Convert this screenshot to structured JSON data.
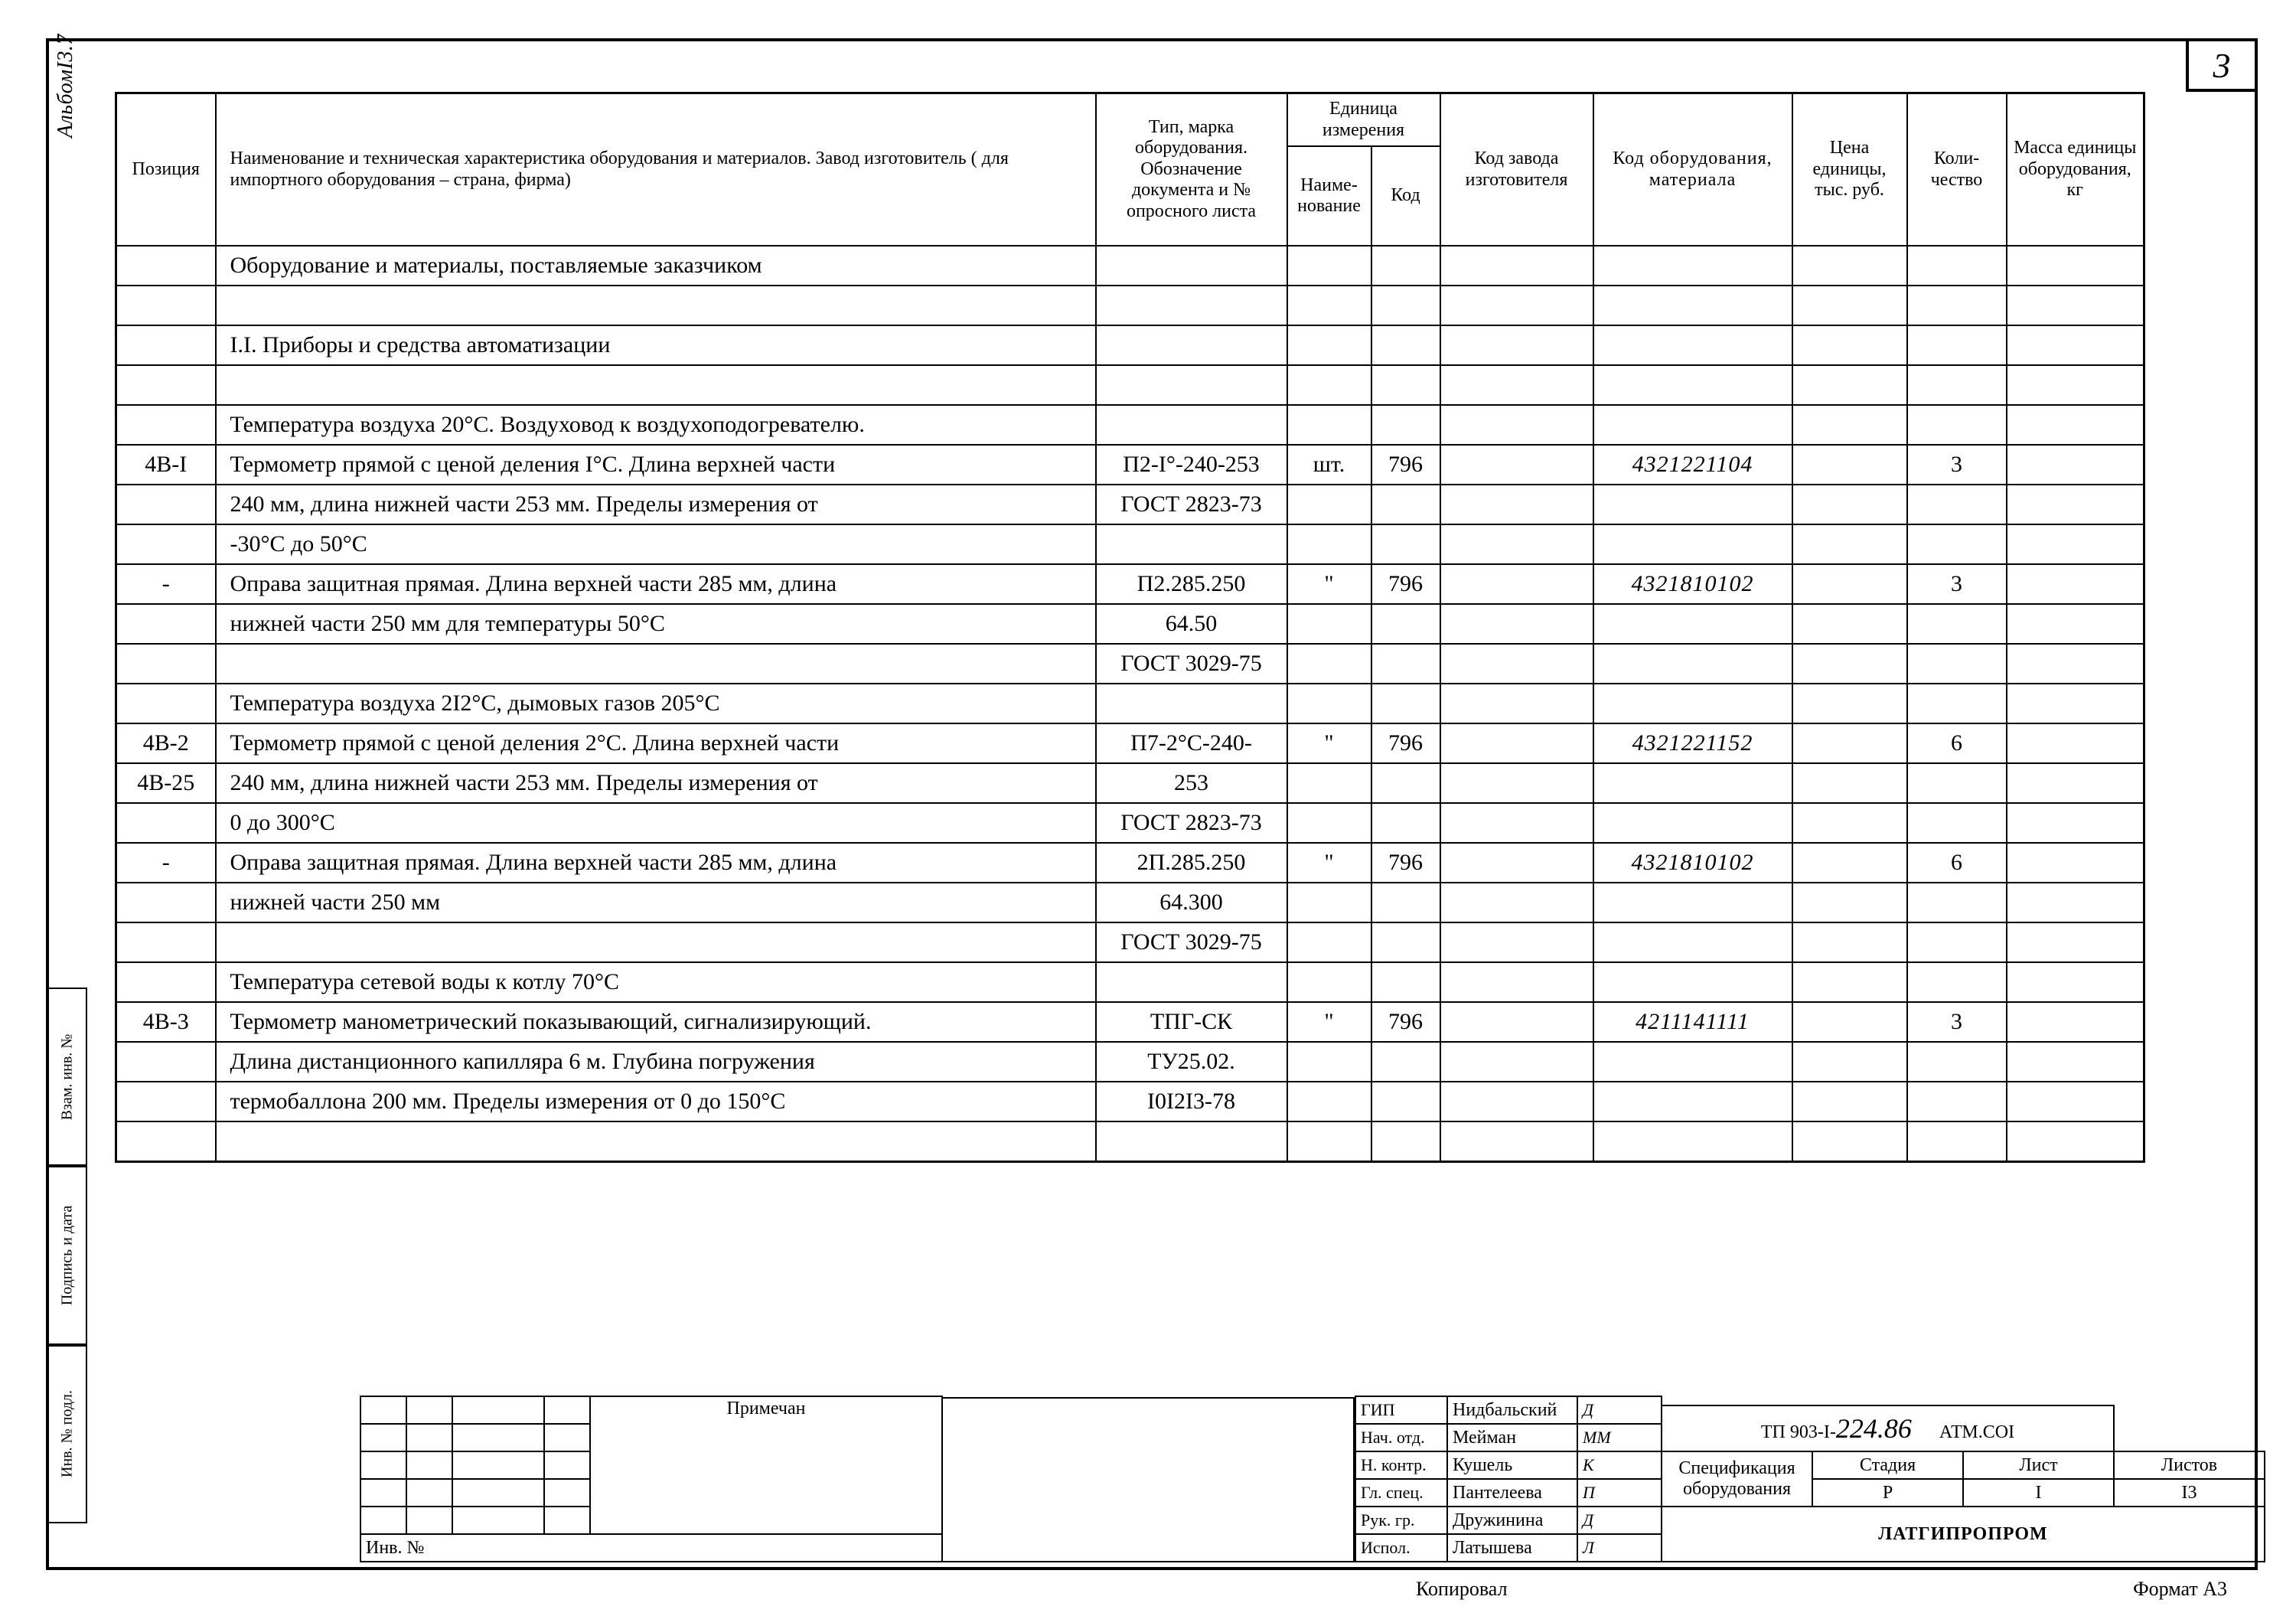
{
  "page_number": "3",
  "album_label": "АльбомI3.7",
  "sidebar": [
    "Взам. инв. №",
    "Подпись и дата",
    "Инв. № подл."
  ],
  "headers": {
    "pos": "Позиция",
    "name": "Наименование и техническая характеристика оборудования и материалов. Завод изготовитель ( для импортного оборудования – страна, фирма)",
    "type": "Тип, марка оборудования. Обозначение документа и № опросного листа",
    "unit_group": "Единица измерения",
    "unit_name": "Наиме-нование",
    "unit_code": "Код",
    "zavod": "Код завода изготовителя",
    "kodob": "Код оборудования, материала",
    "cena": "Цена единицы, тыс. руб.",
    "kol": "Коли-чество",
    "mass": "Масса единицы оборудо­вания, кг"
  },
  "rows": [
    {
      "pos": "",
      "name": "Оборудование и материалы, поставляемые заказчиком",
      "type": "",
      "un": "",
      "kod": "",
      "zav": "",
      "kodob": "",
      "cena": "",
      "kol": "",
      "mass": ""
    },
    {
      "pos": "",
      "name": "",
      "type": "",
      "un": "",
      "kod": "",
      "zav": "",
      "kodob": "",
      "cena": "",
      "kol": "",
      "mass": ""
    },
    {
      "pos": "",
      "name": "I.I. Приборы и средства автоматизации",
      "type": "",
      "un": "",
      "kod": "",
      "zav": "",
      "kodob": "",
      "cena": "",
      "kol": "",
      "mass": ""
    },
    {
      "pos": "",
      "name": "",
      "type": "",
      "un": "",
      "kod": "",
      "zav": "",
      "kodob": "",
      "cena": "",
      "kol": "",
      "mass": ""
    },
    {
      "pos": "",
      "name": "Температура воздуха 20°С. Воздуховод к воздухоподогревателю.",
      "type": "",
      "un": "",
      "kod": "",
      "zav": "",
      "kodob": "",
      "cena": "",
      "kol": "",
      "mass": ""
    },
    {
      "pos": "4В-I",
      "name": "Термометр прямой с ценой деления I°С. Длина верхней части",
      "type": "П2-I°-240-253",
      "un": "шт.",
      "kod": "796",
      "zav": "",
      "kodob": "4321221104",
      "cena": "",
      "kol": "3",
      "mass": ""
    },
    {
      "pos": "",
      "name": "240 мм, длина нижней части 253 мм. Пределы измерения от",
      "type": "ГОСТ 2823-73",
      "un": "",
      "kod": "",
      "zav": "",
      "kodob": "",
      "cena": "",
      "kol": "",
      "mass": ""
    },
    {
      "pos": "",
      "name": "-30°С до 50°С",
      "type": "",
      "un": "",
      "kod": "",
      "zav": "",
      "kodob": "",
      "cena": "",
      "kol": "",
      "mass": ""
    },
    {
      "pos": "-",
      "name": "Оправа защитная прямая. Длина верхней части 285 мм, длина",
      "type": "П2.285.250",
      "un": "\"",
      "kod": "796",
      "zav": "",
      "kodob": "4321810102",
      "cena": "",
      "kol": "3",
      "mass": ""
    },
    {
      "pos": "",
      "name": "нижней части 250 мм для температуры 50°С",
      "type": "64.50",
      "un": "",
      "kod": "",
      "zav": "",
      "kodob": "",
      "cena": "",
      "kol": "",
      "mass": ""
    },
    {
      "pos": "",
      "name": "",
      "type": "ГОСТ 3029-75",
      "un": "",
      "kod": "",
      "zav": "",
      "kodob": "",
      "cena": "",
      "kol": "",
      "mass": ""
    },
    {
      "pos": "",
      "name": "Температура воздуха 2I2°С, дымовых газов 205°С",
      "type": "",
      "un": "",
      "kod": "",
      "zav": "",
      "kodob": "",
      "cena": "",
      "kol": "",
      "mass": ""
    },
    {
      "pos": "4В-2",
      "name": "Термометр прямой с ценой деления 2°С. Длина верхней части",
      "type": "П7-2°С-240-",
      "un": "\"",
      "kod": "796",
      "zav": "",
      "kodob": "4321221152",
      "cena": "",
      "kol": "6",
      "mass": ""
    },
    {
      "pos": "4В-25",
      "name": "240 мм, длина нижней части 253 мм. Пределы измерения от",
      "type": "253",
      "un": "",
      "kod": "",
      "zav": "",
      "kodob": "",
      "cena": "",
      "kol": "",
      "mass": ""
    },
    {
      "pos": "",
      "name": "0 до 300°С",
      "type": "ГОСТ 2823-73",
      "un": "",
      "kod": "",
      "zav": "",
      "kodob": "",
      "cena": "",
      "kol": "",
      "mass": ""
    },
    {
      "pos": "-",
      "name": "Оправа защитная прямая. Длина верхней части 285 мм, длина",
      "type": "2П.285.250",
      "un": "\"",
      "kod": "796",
      "zav": "",
      "kodob": "4321810102",
      "cena": "",
      "kol": "6",
      "mass": ""
    },
    {
      "pos": "",
      "name": "нижней части 250 мм",
      "type": "64.300",
      "un": "",
      "kod": "",
      "zav": "",
      "kodob": "",
      "cena": "",
      "kol": "",
      "mass": ""
    },
    {
      "pos": "",
      "name": "",
      "type": "ГОСТ 3029-75",
      "un": "",
      "kod": "",
      "zav": "",
      "kodob": "",
      "cena": "",
      "kol": "",
      "mass": ""
    },
    {
      "pos": "",
      "name": "Температура сетевой воды к котлу 70°С",
      "type": "",
      "un": "",
      "kod": "",
      "zav": "",
      "kodob": "",
      "cena": "",
      "kol": "",
      "mass": ""
    },
    {
      "pos": "4В-3",
      "name": "Термометр манометрический показывающий, сигнализирующий.",
      "type": "ТПГ-СК",
      "un": "\"",
      "kod": "796",
      "zav": "",
      "kodob": "4211141111",
      "cena": "",
      "kol": "3",
      "mass": ""
    },
    {
      "pos": "",
      "name": "Длина дистанционного капилляра 6 м. Глубина погружения",
      "type": "ТУ25.02.",
      "un": "",
      "kod": "",
      "zav": "",
      "kodob": "",
      "cena": "",
      "kol": "",
      "mass": ""
    },
    {
      "pos": "",
      "name": "термобаллона 200 мм. Пределы измерения от 0 до 150°С",
      "type": "I0I2I3-78",
      "un": "",
      "kod": "",
      "zav": "",
      "kodob": "",
      "cena": "",
      "kol": "",
      "mass": ""
    },
    {
      "pos": "",
      "name": "",
      "type": "",
      "un": "",
      "kod": "",
      "zav": "",
      "kodob": "",
      "cena": "",
      "kol": "",
      "mass": ""
    }
  ],
  "approvers": [
    {
      "role": "ГИП",
      "name": "Нидбальский",
      "sig": "Д"
    },
    {
      "role": "Нач. отд.",
      "name": "Мейман",
      "sig": "ММ"
    },
    {
      "role": "Н. контр.",
      "name": "Кушель",
      "sig": "К"
    },
    {
      "role": "Гл. спец.",
      "name": "Пантелеева",
      "sig": "П"
    },
    {
      "role": "Рук. гр.",
      "name": "Дружинина",
      "sig": "Д"
    },
    {
      "role": "Испол.",
      "name": "Латышева",
      "sig": "Л"
    }
  ],
  "rev_header": "Примечан",
  "inv_label": "Инв. №",
  "doc": {
    "number_prefix": "ТП 903-I-",
    "number_hand": "224.86",
    "number_suffix": "АТМ.СОI",
    "title": "Спецификация оборудования",
    "org": "ЛАТГИПРОПРОМ",
    "s": {
      "h": "Стадия",
      "stage": "Р"
    },
    "l": {
      "h": "Лист",
      "val": "I"
    },
    "ls": {
      "h": "Листов",
      "val": "I3"
    }
  },
  "footer": {
    "kopir": "Копировал",
    "format": "Формат А3"
  },
  "colors": {
    "line": "#000000",
    "bg": "#ffffff"
  }
}
